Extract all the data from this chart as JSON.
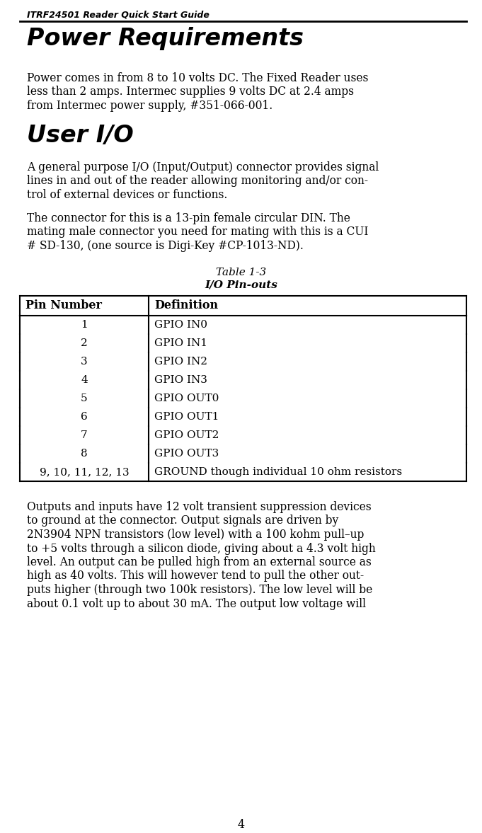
{
  "header_text": "ITRF24501 Reader Quick Start Guide",
  "page_number": "4",
  "section1_title": "Power Requirements",
  "section2_title": "User I/O",
  "table_caption_line1": "Table 1-3",
  "table_caption_line2": "I/O Pin-outs",
  "table_headers": [
    "Pin Number",
    "Definition"
  ],
  "table_rows": [
    [
      "1",
      "GPIO IN0"
    ],
    [
      "2",
      "GPIO IN1"
    ],
    [
      "3",
      "GPIO IN2"
    ],
    [
      "4",
      "GPIO IN3"
    ],
    [
      "5",
      "GPIO OUT0"
    ],
    [
      "6",
      "GPIO OUT1"
    ],
    [
      "7",
      "GPIO OUT2"
    ],
    [
      "8",
      "GPIO OUT3"
    ],
    [
      "9, 10, 11, 12, 13",
      "GROUND though individual 10 ohm resistors"
    ]
  ],
  "body1_lines": [
    "Power comes in from 8 to 10 volts DC. The Fixed Reader uses",
    "less than 2 amps. Intermec supplies 9 volts DC at 2.4 amps",
    "from Intermec power supply, #351-066-001."
  ],
  "body2_lines": [
    "A general purpose I/O (Input/Output) connector provides signal",
    "lines in and out of the reader allowing monitoring and/or con-",
    "trol of external devices or functions."
  ],
  "body3_lines": [
    "The connector for this is a 13-pin female circular DIN. The",
    "mating male connector you need for mating with this is a CUI",
    "# SD-130, (one source is Digi-Key #CP-1013-ND)."
  ],
  "body4_lines": [
    "Outputs and inputs have 12 volt transient suppression devices",
    "to ground at the connector. Output signals are driven by",
    "2N3904 NPN transistors (low level) with a 100 kohm pull–up",
    "to +5 volts through a silicon diode, giving about a 4.3 volt high",
    "level. An output can be pulled high from an external source as",
    "high as 40 volts. This will however tend to pull the other out-",
    "puts higher (through two 100k resistors). The low level will be",
    "about 0.1 volt up to about 30 mA. The output low voltage will"
  ],
  "bg_color": "#ffffff",
  "text_color": "#000000"
}
